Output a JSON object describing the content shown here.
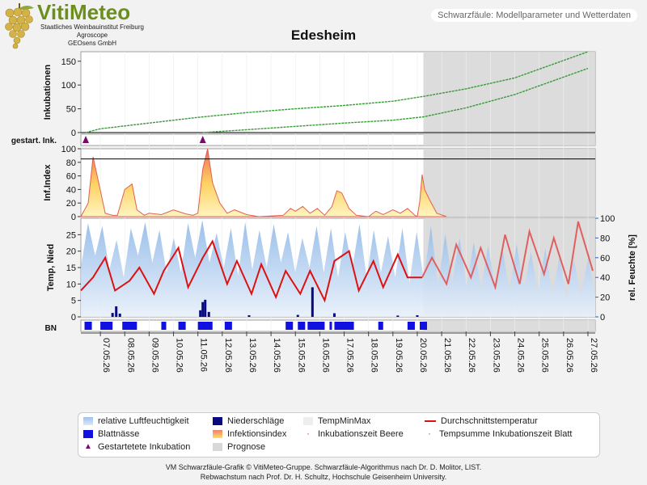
{
  "header": {
    "logo_title": "VitiMeteo",
    "logo_lines": [
      "Staatliches Weinbauinstitut Freiburg",
      "Agroscope",
      "GEOsens GmbH"
    ],
    "subtitle": "Schwarzfäule: Modellparameter und Wetterdaten"
  },
  "chart_data": {
    "type": "line",
    "title": "Edesheim",
    "dates": [
      "07.05.26",
      "08.05.26",
      "09.05.26",
      "10.05.26",
      "11.05.26",
      "12.05.26",
      "13.05.26",
      "14.05.26",
      "15.05.26",
      "16.05.26",
      "17.05.26",
      "18.05.26",
      "19.05.26",
      "20.05.26",
      "21.05.26",
      "22.05.26",
      "23.05.26",
      "24.05.26",
      "25.05.26",
      "26.05.26",
      "27.05.26"
    ],
    "x_range_days": [
      -0.8,
      20.3
    ],
    "forecast_start_day": 13.25,
    "panels": [
      {
        "id": "inkubationen",
        "ylabel": "Inkubationen",
        "ylim": [
          0,
          170
        ],
        "yticks": [
          0,
          50,
          100,
          150
        ],
        "series": [
          {
            "name": "Tempsumme Inkubationszeit Blatt",
            "color": "#3a9a3a",
            "x": [
              -0.6,
              0,
              2,
              4,
              6,
              8,
              10,
              12,
              13.25,
              15,
              17,
              20
            ],
            "y": [
              0,
              8,
              20,
              32,
              42,
              50,
              57,
              66,
              76,
              92,
              115,
              170
            ]
          },
          {
            "name": "Inkubationszeit Beere",
            "color": "#3a9a3a",
            "x": [
              4.2,
              6,
              8,
              10,
              12,
              13.25,
              15,
              17,
              20
            ],
            "y": [
              0,
              6,
              13,
              20,
              26,
              33,
              52,
              80,
              135
            ]
          }
        ]
      },
      {
        "id": "gestartete",
        "ylabel": "gestart. Ink.",
        "markers_days": [
          -0.6,
          4.2
        ]
      },
      {
        "id": "infektionsindex",
        "ylabel": "Inf.Index",
        "ylim": [
          0,
          100
        ],
        "yticks": [
          0,
          20,
          40,
          60,
          80,
          100
        ],
        "threshold": 85,
        "x": [
          -0.8,
          -0.5,
          -0.3,
          -0.1,
          0.2,
          0.5,
          0.7,
          1.0,
          1.3,
          1.5,
          1.8,
          2.0,
          2.5,
          3.0,
          3.5,
          3.8,
          4.0,
          4.2,
          4.4,
          4.6,
          4.9,
          5.2,
          5.5,
          6.0,
          6.5,
          7.5,
          7.8,
          8.0,
          8.3,
          8.6,
          8.9,
          9.2,
          9.5,
          9.7,
          9.9,
          10.2,
          10.5,
          11.0,
          11.3,
          11.6,
          12.0,
          12.3,
          12.6,
          12.9,
          13.0,
          13.1,
          13.2,
          13.3,
          13.5,
          13.8,
          14.2
        ],
        "y": [
          0,
          20,
          88,
          55,
          5,
          2,
          2,
          40,
          48,
          10,
          2,
          5,
          3,
          10,
          4,
          2,
          5,
          70,
          100,
          50,
          20,
          5,
          10,
          3,
          0,
          2,
          12,
          8,
          15,
          5,
          12,
          2,
          15,
          38,
          35,
          12,
          2,
          0,
          8,
          3,
          10,
          5,
          12,
          2,
          0,
          22,
          62,
          40,
          25,
          5,
          0
        ]
      },
      {
        "id": "temperatur",
        "ylabel": "Temp, Nied",
        "ylim": [
          0,
          30
        ],
        "yticks": [
          0,
          5,
          10,
          15,
          20,
          25
        ],
        "y2label": "rel. Feuchte [%]",
        "y2lim": [
          0,
          100
        ],
        "y2ticks": [
          0,
          20,
          40,
          60,
          80,
          100
        ],
        "temp_mean": {
          "name": "Durchschnittstemperatur",
          "color": "#dd1111",
          "x": [
            -0.8,
            -0.3,
            0.2,
            0.6,
            1.2,
            1.6,
            2.2,
            2.6,
            3.2,
            3.6,
            4.2,
            4.6,
            5.2,
            5.6,
            6.2,
            6.6,
            7.2,
            7.6,
            8.2,
            8.6,
            9.2,
            9.6,
            10.2,
            10.6,
            11.2,
            11.6,
            12.2,
            12.6,
            13.2
          ],
          "y": [
            8,
            12,
            18,
            8,
            11,
            15,
            7,
            14,
            21,
            9,
            18,
            23,
            10,
            17,
            7,
            16,
            6,
            14,
            7,
            14,
            5,
            17,
            20,
            8,
            17,
            9,
            19,
            12,
            12
          ]
        },
        "temp_forecast": {
          "name": "Prognose Durchschnittstemperatur",
          "color": "#e06060",
          "x": [
            13.2,
            13.6,
            14.2,
            14.6,
            15.2,
            15.6,
            16.2,
            16.6,
            17.2,
            17.6,
            18.2,
            18.6,
            19.2,
            19.6,
            20.2
          ],
          "y": [
            12,
            18,
            10,
            22,
            12,
            21,
            9,
            25,
            10,
            26,
            13,
            24,
            10,
            29,
            14
          ]
        },
        "humidity_peaks": [
          95,
          92,
          78,
          90,
          96,
          88,
          80,
          95,
          98,
          85,
          90,
          96,
          88,
          94,
          86,
          80,
          92,
          90,
          86,
          94,
          88,
          82,
          90,
          86,
          92,
          84,
          80,
          76,
          72,
          70,
          74,
          66,
          70,
          62,
          58,
          60
        ],
        "humidity_troughs": [
          50,
          62,
          48,
          40,
          62,
          55,
          45,
          45,
          60,
          55,
          50,
          42,
          48,
          50,
          55,
          45,
          50,
          45,
          40,
          50,
          40,
          45,
          40,
          35,
          38,
          32,
          36,
          30,
          28,
          30,
          26,
          28,
          24,
          22,
          20,
          22
        ],
        "precip": {
          "name": "Niederschläge",
          "bars": [
            [
              0.5,
              1.2
            ],
            [
              0.65,
              3.2
            ],
            [
              0.8,
              1.0
            ],
            [
              4.1,
              2.0
            ],
            [
              4.2,
              4.5
            ],
            [
              4.3,
              5.2
            ],
            [
              4.45,
              1.5
            ],
            [
              8.7,
              9.0
            ],
            [
              6.1,
              0.5
            ],
            [
              8.1,
              0.6
            ],
            [
              9.6,
              1.1
            ],
            [
              12.2,
              0.4
            ],
            [
              13.0,
              0.5
            ]
          ]
        }
      },
      {
        "id": "bn",
        "ylabel": "BN",
        "wet_spans": [
          [
            -0.65,
            -0.35
          ],
          [
            0.0,
            0.5
          ],
          [
            0.9,
            1.5
          ],
          [
            2.5,
            2.7
          ],
          [
            3.2,
            3.5
          ],
          [
            4.0,
            4.6
          ],
          [
            5.1,
            5.4
          ],
          [
            7.6,
            7.9
          ],
          [
            8.1,
            8.4
          ],
          [
            8.5,
            9.2
          ],
          [
            9.4,
            9.5
          ],
          [
            9.6,
            10.4
          ],
          [
            11.4,
            11.6
          ],
          [
            12.6,
            12.9
          ],
          [
            13.1,
            13.4
          ]
        ]
      }
    ],
    "legend": [
      {
        "label": "relative Luftfeuchtigkeit",
        "kind": "humidity"
      },
      {
        "label": "Niederschläge",
        "kind": "precip"
      },
      {
        "label": "TempMinMax",
        "kind": "minmax"
      },
      {
        "label": "Durchschnittstemperatur",
        "kind": "line"
      },
      {
        "label": "Blattnässe",
        "kind": "bn"
      },
      {
        "label": "Infektionsindex",
        "kind": "index"
      },
      {
        "label": "Inkubationszeit Beere",
        "kind": "dot"
      },
      {
        "label": "Tempsumme Inkubationszeit Blatt",
        "kind": "dot"
      },
      {
        "label": "Gestartetete Inkubation",
        "kind": "triangle"
      },
      {
        "label": "Prognose",
        "kind": "prognose"
      }
    ],
    "colors": {
      "humidity": "#8fb8e8",
      "precip": "#0a0a80",
      "temp": "#dd1111",
      "bn": "#1010e0",
      "incubation": "#3a9a3a",
      "marker": "#7a0a6a",
      "forecast": "#d8d8d8"
    }
  },
  "footer": {
    "line1": "VM Schwarzfäule-Grafik © VitiMeteo-Gruppe. Schwarzfäule-Algorithmus nach Dr. D. Molitor, LIST.",
    "line2": "Rebwachstum nach Prof. Dr. H. Schultz, Hochschule Geisenheim University."
  }
}
